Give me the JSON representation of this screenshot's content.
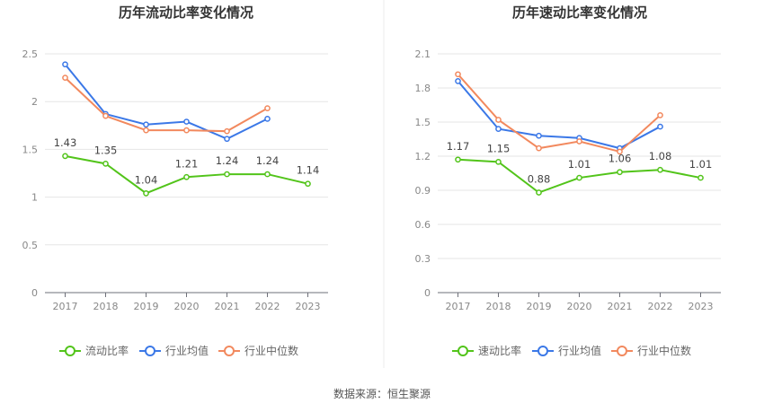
{
  "source_label": "数据来源：恒生聚源",
  "chart_data": [
    {
      "type": "line",
      "title": "历年流动比率变化情况",
      "categories": [
        "2017",
        "2018",
        "2019",
        "2020",
        "2021",
        "2022",
        "2023"
      ],
      "ylim": [
        0,
        2.5
      ],
      "yticks": [
        "0",
        "0.5",
        "1",
        "1.5",
        "2",
        "2.5"
      ],
      "ytick_values": [
        0,
        0.5,
        1,
        1.5,
        2,
        2.5
      ],
      "grid": true,
      "legend_position": "bottom",
      "series": [
        {
          "name": "流动比率",
          "color": "#52c41a",
          "values": [
            1.43,
            1.35,
            1.04,
            1.21,
            1.24,
            1.24,
            1.14
          ],
          "labels": [
            "1.43",
            "1.35",
            "1.04",
            "1.21",
            "1.24",
            "1.24",
            "1.14"
          ]
        },
        {
          "name": "行业均值",
          "color": "#3b78e7",
          "values": [
            2.39,
            1.87,
            1.76,
            1.79,
            1.61,
            1.82,
            null
          ]
        },
        {
          "name": "行业中位数",
          "color": "#f2895e",
          "values": [
            2.25,
            1.85,
            1.7,
            1.7,
            1.69,
            1.93,
            null
          ]
        }
      ]
    },
    {
      "type": "line",
      "title": "历年速动比率变化情况",
      "categories": [
        "2017",
        "2018",
        "2019",
        "2020",
        "2021",
        "2022",
        "2023"
      ],
      "ylim": [
        0,
        2.1
      ],
      "yticks": [
        "0",
        "0.3",
        "0.6",
        "0.9",
        "1.2",
        "1.5",
        "1.8",
        "2.1"
      ],
      "ytick_values": [
        0,
        0.3,
        0.6,
        0.9,
        1.2,
        1.5,
        1.8,
        2.1
      ],
      "grid": true,
      "legend_position": "bottom",
      "series": [
        {
          "name": "速动比率",
          "color": "#52c41a",
          "values": [
            1.17,
            1.15,
            0.88,
            1.01,
            1.06,
            1.08,
            1.01
          ],
          "labels": [
            "1.17",
            "1.15",
            "0.88",
            "1.01",
            "1.06",
            "1.08",
            "1.01"
          ]
        },
        {
          "name": "行业均值",
          "color": "#3b78e7",
          "values": [
            1.86,
            1.44,
            1.38,
            1.36,
            1.27,
            1.46,
            null
          ]
        },
        {
          "name": "行业中位数",
          "color": "#f2895e",
          "values": [
            1.92,
            1.52,
            1.27,
            1.33,
            1.24,
            1.56,
            null
          ]
        }
      ]
    }
  ]
}
